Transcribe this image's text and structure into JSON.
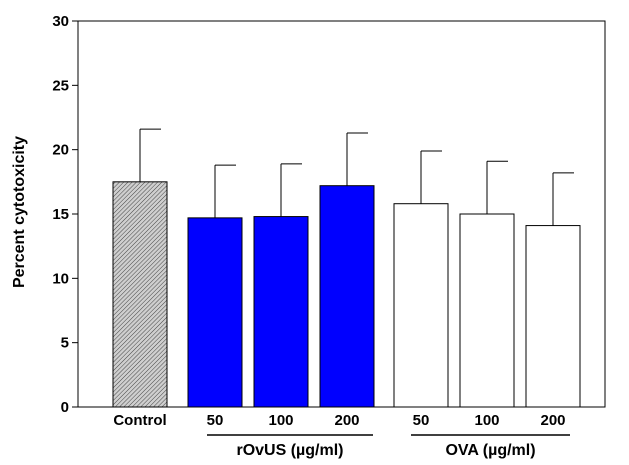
{
  "chart_data": {
    "type": "bar",
    "title": "",
    "xlabel": "",
    "ylabel": "Percent cytotoxicity",
    "ylim": [
      0,
      30
    ],
    "yticks": [
      0,
      5,
      10,
      15,
      20,
      25,
      30
    ],
    "ytick_labels": [
      "0",
      "5",
      "10",
      "15",
      "20",
      "25",
      "30"
    ],
    "grid": false,
    "categories": [
      "Control",
      "50",
      "100",
      "200",
      "50",
      "100",
      "200"
    ],
    "values": [
      17.5,
      14.7,
      14.8,
      17.2,
      15.8,
      15.0,
      14.1
    ],
    "errors": [
      4.1,
      4.1,
      4.1,
      4.1,
      4.1,
      4.1,
      4.1
    ],
    "bar_styles": [
      "hatched",
      "blue",
      "blue",
      "blue",
      "white",
      "white",
      "white"
    ],
    "groups": [
      {
        "label": "rOvUS (µg/ml)",
        "categories": [
          "50",
          "100",
          "200"
        ]
      },
      {
        "label": "OVA (µg/ml)",
        "categories": [
          "50",
          "100",
          "200"
        ]
      }
    ],
    "colors": {
      "blue": "#0000ff",
      "white": "#ffffff",
      "hatched_fill": "#bdbdbd",
      "hatched_line": "#333333",
      "edge": "#000000"
    }
  }
}
